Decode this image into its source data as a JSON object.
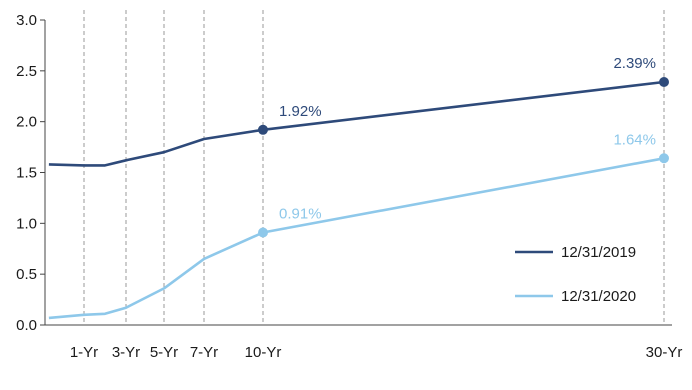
{
  "chart_data": {
    "type": "line",
    "title": "",
    "xlabel": "",
    "ylabel": "",
    "ylim": [
      0.0,
      3.0
    ],
    "y_ticks": [
      "0.0",
      "0.5",
      "1.0",
      "1.5",
      "2.0",
      "2.5",
      "3.0"
    ],
    "x_ticks": [
      "1-Yr",
      "3-Yr",
      "5-Yr",
      "7-Yr",
      "10-Yr",
      "30-Yr"
    ],
    "grid": "vertical dashed lines at maturities",
    "legend_position": "right",
    "colors": {
      "series_2019": "#2e4a7a",
      "series_2020": "#8ec8ea"
    },
    "x": [
      0.1,
      1,
      2,
      3,
      5,
      7,
      10,
      30
    ],
    "series": [
      {
        "name": "12/31/2019",
        "values": [
          1.58,
          1.57,
          1.57,
          1.62,
          1.7,
          1.83,
          1.92,
          2.39
        ],
        "labels": [
          {
            "x": 10,
            "y": 1.92,
            "text": "1.92%"
          },
          {
            "x": 30,
            "y": 2.39,
            "text": "2.39%"
          }
        ]
      },
      {
        "name": "12/31/2020",
        "values": [
          0.07,
          0.1,
          0.11,
          0.17,
          0.36,
          0.65,
          0.91,
          1.64
        ],
        "labels": [
          {
            "x": 10,
            "y": 0.91,
            "text": "0.91%"
          },
          {
            "x": 30,
            "y": 1.64,
            "text": "1.64%"
          }
        ]
      }
    ]
  }
}
